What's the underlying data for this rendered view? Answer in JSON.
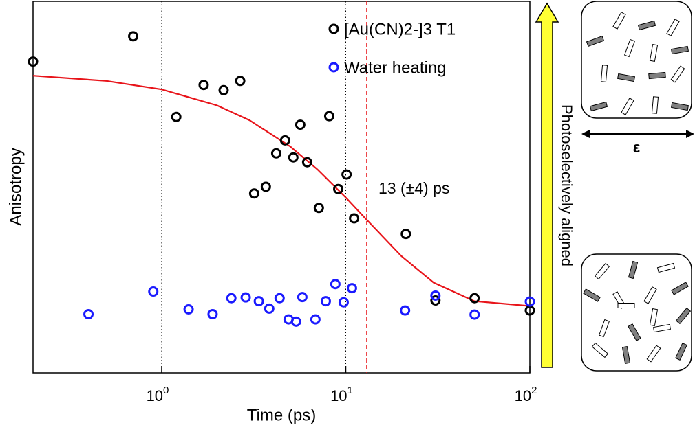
{
  "chart_data": {
    "type": "scatter",
    "x_label": "Time (ps)",
    "y_label": "Anisotropy",
    "xscale": "log",
    "xlim": [
      0.2,
      100
    ],
    "ylim": [
      0,
      1
    ],
    "xticks": [
      {
        "value": 1,
        "label": "10",
        "exponent": "0"
      },
      {
        "value": 10,
        "label": "10",
        "exponent": "1"
      },
      {
        "value": 100,
        "label": "10",
        "exponent": "2"
      }
    ],
    "grid": true,
    "legend": "upper right",
    "series": [
      {
        "name": "[Au(CN)2-]3 T1",
        "color": "#000000",
        "x": [
          0.2,
          0.7,
          1.2,
          1.69,
          2.17,
          2.67,
          3.18,
          3.68,
          4.19,
          4.68,
          5.19,
          5.66,
          6.17,
          7.14,
          8.13,
          9.1,
          10.1,
          11.1,
          21.2,
          30.7,
          50.1,
          100
        ],
        "values": [
          0.838,
          0.906,
          0.689,
          0.775,
          0.761,
          0.786,
          0.483,
          0.501,
          0.591,
          0.626,
          0.58,
          0.668,
          0.567,
          0.444,
          0.691,
          0.495,
          0.534,
          0.416,
          0.374,
          0.195,
          0.201,
          0.168
        ]
      },
      {
        "name": "Water heating",
        "color": "#1a1aff",
        "x": [
          0.4,
          0.9,
          1.4,
          1.89,
          2.39,
          2.86,
          3.37,
          3.84,
          4.37,
          4.89,
          5.37,
          5.81,
          6.84,
          7.79,
          8.78,
          9.74,
          10.8,
          21.0,
          30.7,
          50.1,
          100
        ],
        "values": [
          0.158,
          0.219,
          0.171,
          0.158,
          0.201,
          0.203,
          0.193,
          0.173,
          0.201,
          0.144,
          0.138,
          0.204,
          0.144,
          0.193,
          0.239,
          0.19,
          0.228,
          0.168,
          0.208,
          0.157,
          0.192
        ]
      }
    ],
    "fit": {
      "color": "#e8141a",
      "x": [
        0.2,
        0.5,
        1,
        2,
        3,
        5,
        7,
        10,
        13,
        20,
        30,
        50,
        100
      ],
      "values": [
        0.8,
        0.786,
        0.763,
        0.72,
        0.68,
        0.609,
        0.548,
        0.472,
        0.412,
        0.315,
        0.243,
        0.193,
        0.18
      ]
    },
    "annotations": [
      {
        "x": 13,
        "text": "13 (±4) ps",
        "color": "#e8141a"
      }
    ],
    "arrow_label": "Photoselectively aligned",
    "field_label": "ε"
  }
}
